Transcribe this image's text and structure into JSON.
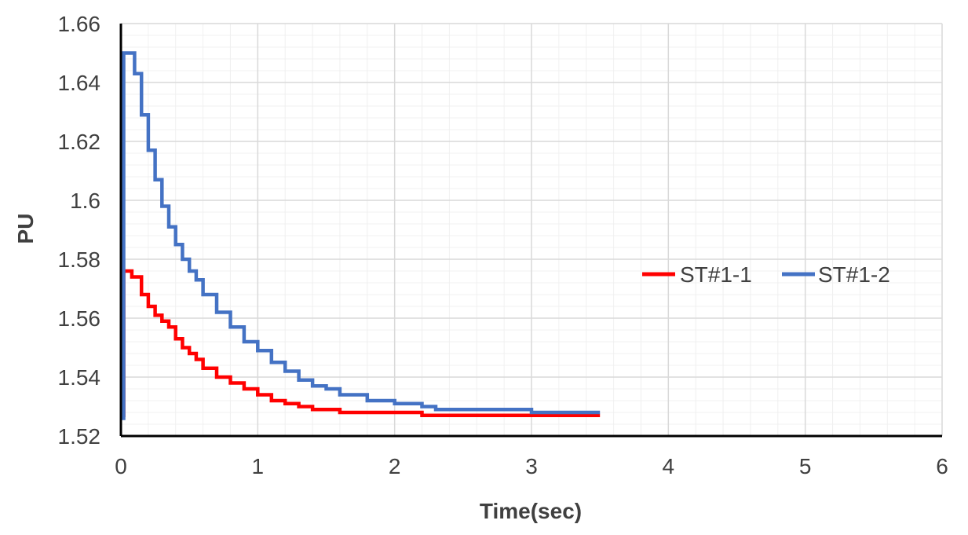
{
  "chart_data": {
    "type": "line",
    "title": "",
    "xlabel": "Time(sec)",
    "ylabel": "PU",
    "xlim": [
      0,
      6
    ],
    "ylim": [
      1.52,
      1.66
    ],
    "x_ticks": [
      "0",
      "1",
      "2",
      "3",
      "4",
      "5",
      "6"
    ],
    "y_ticks": [
      "1.52",
      "1.54",
      "1.56",
      "1.58",
      "1.6",
      "1.62",
      "1.64",
      "1.66"
    ],
    "grid": true,
    "legend_position": "right",
    "series": [
      {
        "name": "ST#1-1",
        "color": "#ff0000",
        "x": [
          0,
          0.02,
          0.08,
          0.15,
          0.2,
          0.25,
          0.3,
          0.35,
          0.4,
          0.45,
          0.5,
          0.55,
          0.6,
          0.7,
          0.8,
          0.9,
          1.0,
          1.1,
          1.2,
          1.3,
          1.4,
          1.5,
          1.6,
          1.8,
          2.0,
          2.2,
          2.3,
          2.5,
          3.0,
          3.5
        ],
        "y": [
          1.527,
          1.576,
          1.574,
          1.568,
          1.564,
          1.561,
          1.559,
          1.557,
          1.553,
          1.55,
          1.548,
          1.546,
          1.543,
          1.54,
          1.538,
          1.536,
          1.534,
          1.532,
          1.531,
          1.53,
          1.529,
          1.529,
          1.528,
          1.528,
          1.528,
          1.527,
          1.527,
          1.527,
          1.527,
          1.527
        ]
      },
      {
        "name": "ST#1-2",
        "color": "#4472c4",
        "x": [
          0,
          0.02,
          0.05,
          0.1,
          0.15,
          0.2,
          0.25,
          0.3,
          0.35,
          0.4,
          0.45,
          0.5,
          0.55,
          0.6,
          0.7,
          0.8,
          0.9,
          1.0,
          1.1,
          1.2,
          1.3,
          1.4,
          1.5,
          1.6,
          1.8,
          2.0,
          2.2,
          2.3,
          2.5,
          3.0,
          3.5
        ],
        "y": [
          1.526,
          1.65,
          1.65,
          1.643,
          1.629,
          1.617,
          1.607,
          1.598,
          1.591,
          1.585,
          1.58,
          1.576,
          1.573,
          1.568,
          1.562,
          1.557,
          1.552,
          1.549,
          1.545,
          1.542,
          1.539,
          1.537,
          1.536,
          1.534,
          1.532,
          1.531,
          1.53,
          1.529,
          1.529,
          1.528,
          1.528
        ]
      }
    ]
  }
}
